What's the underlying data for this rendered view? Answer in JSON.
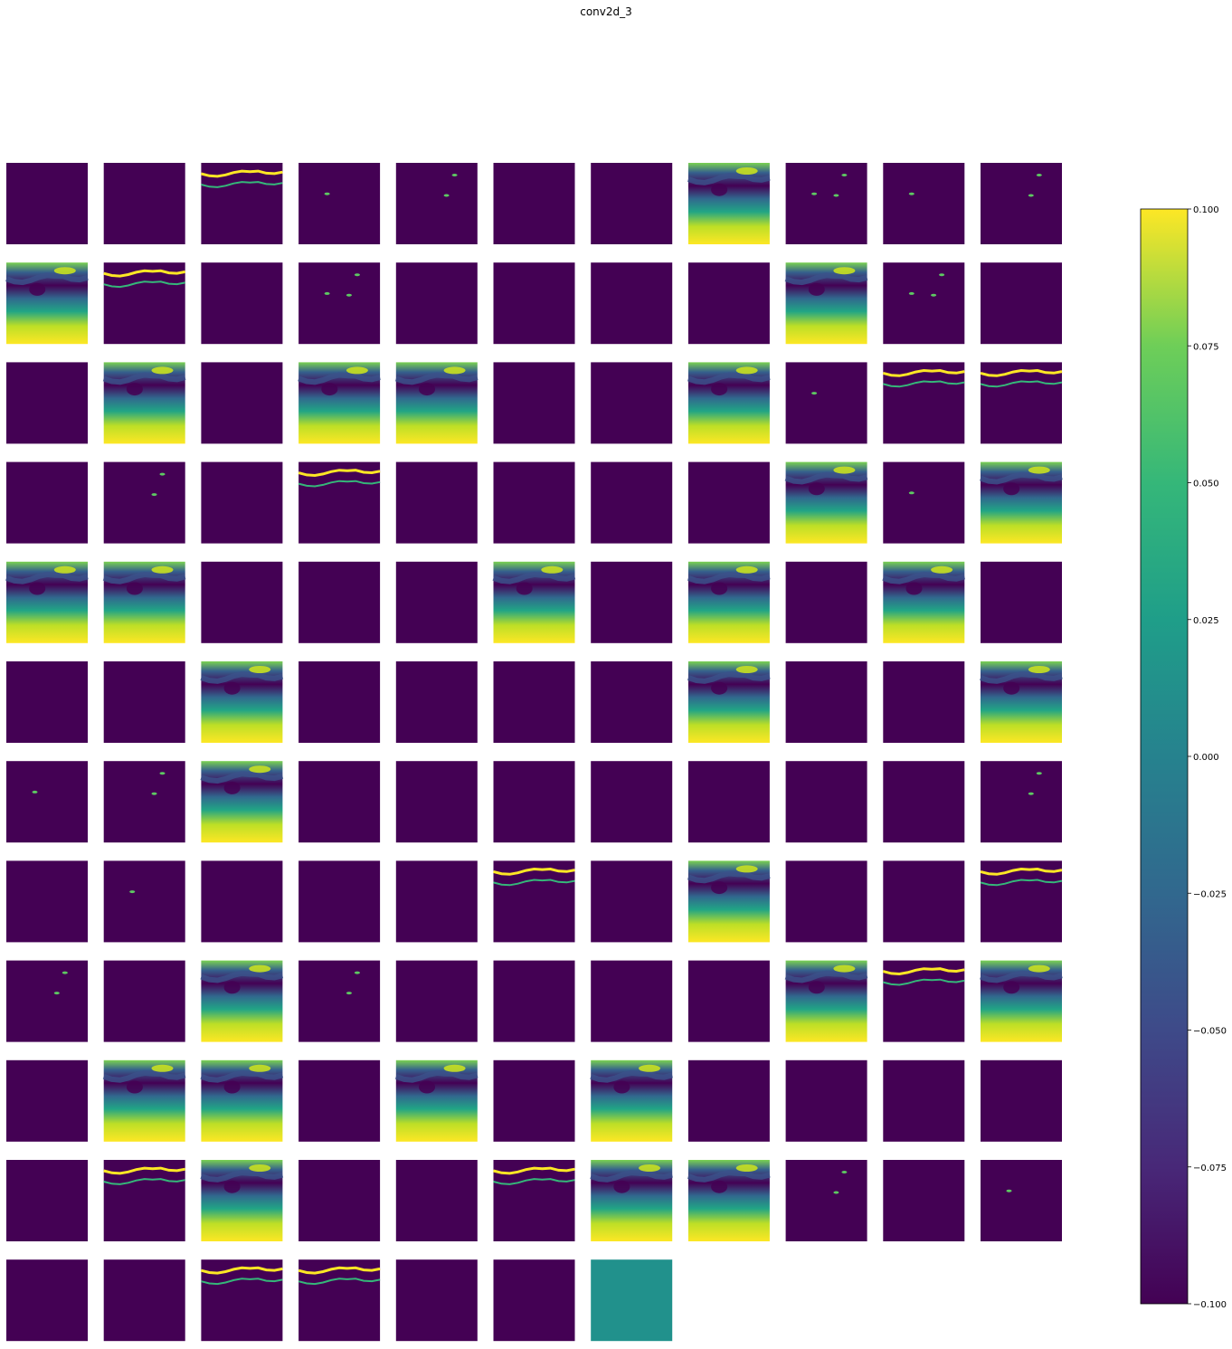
{
  "title": "conv2d_3",
  "chart_data": {
    "type": "heatmap",
    "title": "conv2d_3",
    "grid": {
      "rows": 12,
      "cols": 11,
      "panels": 128
    },
    "colormap": "viridis",
    "color_range": [
      -0.1,
      0.1
    ],
    "colorbar": {
      "ticks": [
        0.1,
        0.075,
        0.05,
        0.025,
        0.0,
        -0.025,
        -0.05,
        -0.075,
        -0.1
      ],
      "tick_labels": [
        "0.100",
        "0.075",
        "0.050",
        "0.025",
        "0.000",
        "−0.025",
        "−0.050",
        "−0.075",
        "−0.100"
      ]
    },
    "panel_patterns": "D=uniform dark (min), F=full gradient activation, B=bright-bands activation, S=sparse activations, T=uniform mid-range",
    "panel_pattern_codes": [
      "DDBSSDDFSSS",
      "FBDSDDDDFSD",
      "DFDFFDDFSBB",
      "DSDBDDDDFSF",
      "FFDDDFDFDFD",
      "DDFDDDDFDDF",
      "SSFDDDDDDDS",
      "DSDDDBDFDDB",
      "SDFSDDDDFBF",
      "DFFDFDFDDDD",
      "DBFDDBFFSDS",
      "DDBBDDT"
    ]
  },
  "colors": {
    "dark": "#440154",
    "mid": "#21918c",
    "bright": "#fde725"
  }
}
